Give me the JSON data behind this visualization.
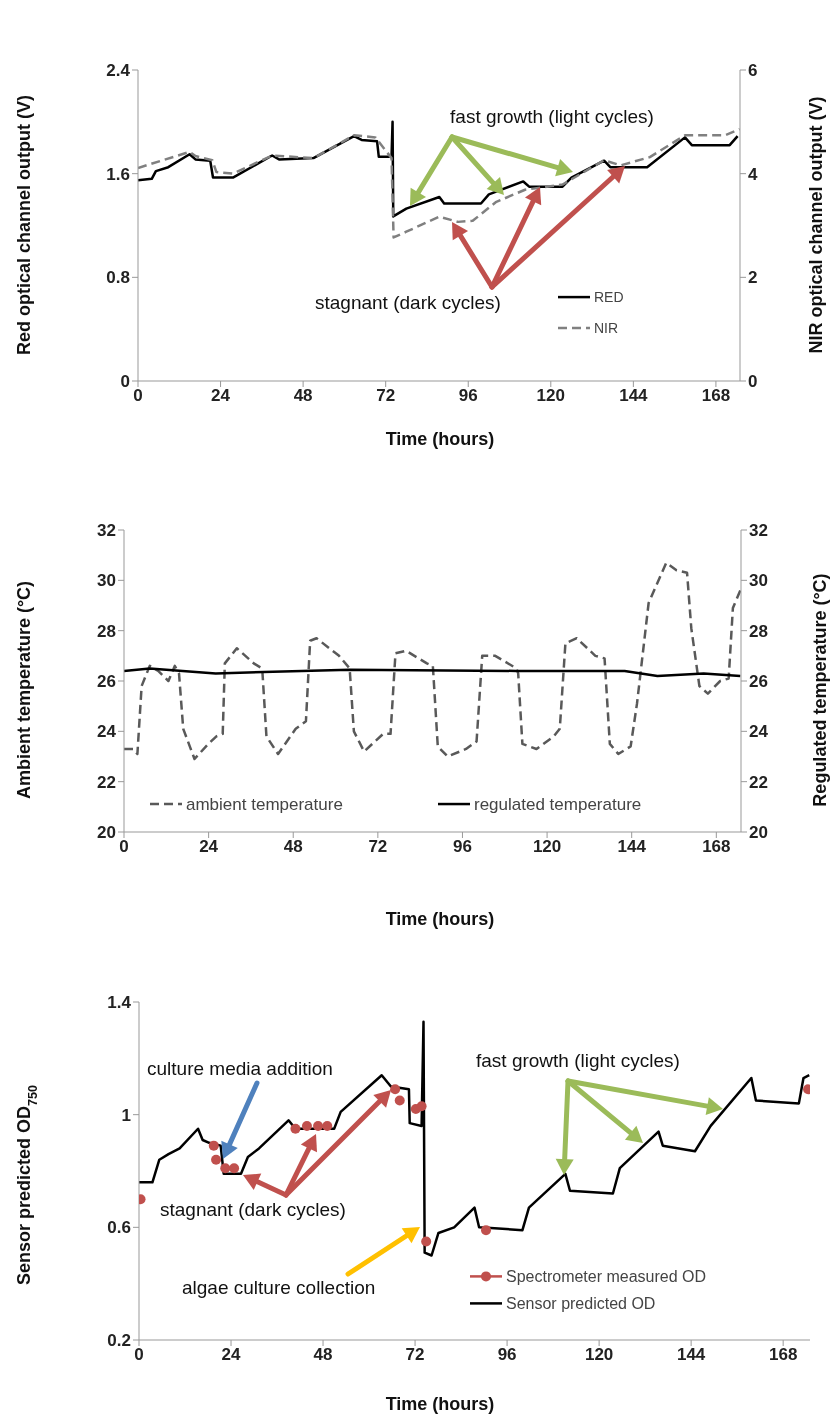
{
  "chart_data": [
    {
      "type": "line",
      "xlabel": "Time (hours)",
      "ylabel": "Red optical channel output (V)",
      "y2label": "NIR optical channel output (V)",
      "xlim": [
        0,
        175
      ],
      "xticks": [
        0,
        24,
        48,
        72,
        96,
        120,
        144,
        168
      ],
      "ylim": [
        0,
        2.4
      ],
      "yticks": [
        0,
        0.8,
        1.6,
        2.4
      ],
      "y2lim": [
        0,
        6
      ],
      "y2ticks": [
        0,
        2,
        4,
        6
      ],
      "legend": "bottom right",
      "marker": "none",
      "annotations": [
        "fast growth (light cycles)",
        "stagnant (dark cycles)"
      ],
      "series": [
        {
          "name": "RED",
          "color": "#000000",
          "line_style": "solid",
          "x": [
            0,
            4,
            5.2,
            8.8,
            15,
            16.7,
            21,
            21.8,
            27.6,
            39,
            41,
            51,
            62.8,
            65,
            69.5,
            70,
            73.7,
            74,
            74.2,
            78,
            87.6,
            89,
            99.7,
            102,
            112,
            113.7,
            123.4,
            126,
            135.5,
            137.3,
            148,
            159,
            161,
            172,
            174.3
          ],
          "values": [
            1.55,
            1.56,
            1.62,
            1.65,
            1.75,
            1.71,
            1.7,
            1.57,
            1.57,
            1.74,
            1.71,
            1.72,
            1.89,
            1.86,
            1.85,
            1.73,
            1.73,
            2.0,
            1.27,
            1.33,
            1.42,
            1.37,
            1.37,
            1.44,
            1.54,
            1.5,
            1.5,
            1.57,
            1.7,
            1.65,
            1.65,
            1.88,
            1.82,
            1.82,
            1.89
          ]
        },
        {
          "name": "NIR",
          "color": "#808080",
          "line_style": "dashed",
          "axis": "y2",
          "x": [
            0,
            15,
            16.7,
            21.6,
            22.8,
            27.6,
            39,
            51,
            62.8,
            69,
            73.7,
            74.3,
            78,
            87.6,
            93,
            97.3,
            104,
            112.5,
            123.4,
            135.5,
            140.3,
            148.8,
            159,
            170.6,
            174.9
          ],
          "values": [
            4.11,
            4.42,
            4.34,
            4.26,
            4.03,
            4.0,
            4.35,
            4.3,
            4.74,
            4.7,
            4.3,
            2.77,
            2.88,
            3.17,
            3.07,
            3.09,
            3.45,
            3.69,
            3.79,
            4.26,
            4.16,
            4.32,
            4.74,
            4.74,
            4.86
          ]
        }
      ]
    },
    {
      "type": "line",
      "xlabel": "Time (hours)",
      "ylabel": "Ambient temperature (°C)",
      "y2label": "Regulated temperature (°C)",
      "xlim": [
        0,
        175
      ],
      "xticks": [
        0,
        24,
        48,
        72,
        96,
        120,
        144,
        168
      ],
      "ylim": [
        20,
        32
      ],
      "yticks": [
        20,
        22,
        24,
        26,
        28,
        30,
        32
      ],
      "y2lim": [
        20,
        32
      ],
      "y2ticks": [
        20,
        22,
        24,
        26,
        28,
        30,
        32
      ],
      "legend": "bottom",
      "marker": "none",
      "series": [
        {
          "name": "ambient temperature",
          "color": "#595959",
          "line_style": "dashed",
          "x": [
            0,
            2.6,
            3.8,
            5,
            7.3,
            9.7,
            12.6,
            14.4,
            15.6,
            16.8,
            20,
            23.9,
            26.2,
            28,
            28.6,
            32,
            36.8,
            39.2,
            40.4,
            43.7,
            48.7,
            51.6,
            52.8,
            54.6,
            61,
            64,
            65.2,
            68.1,
            73.5,
            75.6,
            77,
            80,
            85.9,
            87.6,
            89,
            91.8,
            97,
            100,
            101.6,
            105.3,
            111.3,
            111.8,
            113,
            117,
            121.9,
            123.6,
            125.2,
            128.4,
            133.7,
            136.3,
            137.8,
            140.2,
            143.7,
            145.5,
            148.8,
            153.8,
            156.7,
            159.7,
            160.9,
            163.2,
            165.6,
            169.1,
            171.5,
            172.7,
            174.8
          ],
          "values": [
            23.3,
            23.3,
            23.1,
            25.8,
            26.6,
            26.4,
            26.0,
            26.6,
            26.3,
            24.1,
            22.9,
            23.5,
            23.8,
            23.9,
            26.7,
            27.3,
            26.7,
            26.5,
            23.8,
            23.1,
            24.1,
            24.4,
            27.6,
            27.7,
            27.0,
            26.5,
            24.0,
            23.2,
            23.9,
            23.9,
            27.1,
            27.2,
            26.7,
            26.6,
            23.4,
            23.0,
            23.3,
            23.6,
            27.0,
            27.0,
            26.5,
            26.3,
            23.5,
            23.3,
            23.8,
            24.1,
            27.5,
            27.7,
            27.0,
            26.9,
            23.5,
            23.1,
            23.4,
            25.1,
            29.1,
            30.7,
            30.4,
            30.3,
            28.1,
            25.8,
            25.5,
            26.0,
            26.1,
            28.9,
            29.6
          ]
        },
        {
          "name": "regulated temperature",
          "color": "#000000",
          "line_style": "solid",
          "axis": "y2",
          "x": [
            0,
            7.3,
            26,
            64,
            111.3,
            142,
            151.3,
            164.4,
            174.8
          ],
          "values": [
            26.4,
            26.5,
            26.3,
            26.45,
            26.4,
            26.4,
            26.2,
            26.3,
            26.2
          ]
        }
      ]
    },
    {
      "type": "line",
      "xlabel": "Time (hours)",
      "ylabel": "Sensor predicted OD$_{750}$",
      "xlim": [
        0,
        175
      ],
      "xticks": [
        0,
        24,
        48,
        72,
        96,
        120,
        144,
        168
      ],
      "ylim": [
        0.2,
        1.4
      ],
      "yticks": [
        0.2,
        0.6,
        1,
        1.4
      ],
      "legend": "bottom right",
      "annotations": [
        "culture media addition",
        "stagnant (dark cycles)",
        "algae culture collection",
        "fast growth (light cycles)"
      ],
      "series": [
        {
          "name": "Spectrometer measured OD",
          "color": "#c0504d",
          "type": "scatter",
          "marker": "circle",
          "x": [
            0.4,
            19.5,
            20.1,
            22.5,
            24.8,
            40.8,
            43.8,
            46.7,
            49.1,
            66.8,
            68,
            72.2,
            73.7,
            74.9,
            90.5,
            174.5
          ],
          "values": [
            0.7,
            0.89,
            0.84,
            0.81,
            0.81,
            0.95,
            0.96,
            0.96,
            0.96,
            1.09,
            1.05,
            1.02,
            1.03,
            0.55,
            0.59,
            1.09
          ]
        },
        {
          "name": "Sensor predicted OD",
          "color": "#000000",
          "marker": "none",
          "line_style": "solid",
          "x": [
            0,
            3.5,
            5.3,
            7.7,
            10.6,
            15.4,
            16.6,
            18.3,
            21.3,
            22.1,
            26.6,
            28.4,
            31.3,
            39,
            40.8,
            50.9,
            52.6,
            63.3,
            65.7,
            70.4,
            70.6,
            73.7,
            74.2,
            74.5,
            76.3,
            78.1,
            82.2,
            87.5,
            88.7,
            100,
            101.7,
            111.2,
            112.4,
            123.6,
            125.4,
            135.5,
            136.6,
            145,
            149.1,
            159.7,
            160.9,
            172.1,
            173.3,
            174.8
          ],
          "values": [
            0.76,
            0.76,
            0.84,
            0.86,
            0.88,
            0.95,
            0.91,
            0.9,
            0.89,
            0.79,
            0.79,
            0.85,
            0.88,
            0.98,
            0.95,
            0.95,
            1.01,
            1.14,
            1.1,
            1.09,
            0.97,
            0.96,
            1.33,
            0.51,
            0.5,
            0.58,
            0.6,
            0.67,
            0.6,
            0.59,
            0.67,
            0.79,
            0.73,
            0.72,
            0.81,
            0.94,
            0.89,
            0.87,
            0.96,
            1.13,
            1.05,
            1.04,
            1.13,
            1.14
          ]
        }
      ]
    }
  ]
}
